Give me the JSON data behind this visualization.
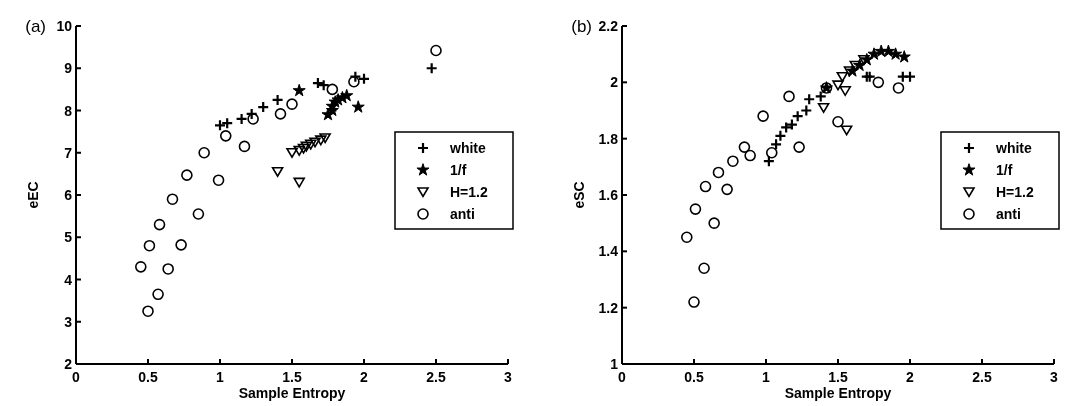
{
  "chart_data": [
    {
      "type": "scatter",
      "title": "(a)",
      "xlabel": "Sample Entropy",
      "ylabel": "eEC",
      "xlim": [
        0,
        3
      ],
      "xticks": [
        0,
        0.5,
        1,
        1.5,
        2,
        2.5,
        3
      ],
      "ylim": [
        2,
        10
      ],
      "yticks": [
        2,
        3,
        4,
        5,
        6,
        7,
        8,
        9,
        10
      ],
      "legend": "right",
      "grid": false,
      "series": [
        {
          "name": "white",
          "color": "#000000",
          "marker": "cross",
          "x": [
            1.0,
            1.05,
            1.15,
            1.22,
            1.3,
            1.4,
            1.68,
            1.72,
            1.94,
            2.0,
            2.47
          ],
          "values": [
            7.65,
            7.7,
            7.8,
            7.92,
            8.08,
            8.25,
            8.65,
            8.6,
            8.8,
            8.75,
            9.0
          ]
        },
        {
          "name": "1/f",
          "color": "#000000",
          "marker": "star",
          "x": [
            1.55,
            1.75,
            1.78,
            1.78,
            1.8,
            1.82,
            1.85,
            1.88,
            1.96
          ],
          "values": [
            8.47,
            7.9,
            8.0,
            8.1,
            8.2,
            8.25,
            8.3,
            8.35,
            8.08
          ]
        },
        {
          "name": "H=1.2",
          "color": "#000000",
          "marker": "triangle",
          "x": [
            1.4,
            1.55,
            1.5,
            1.55,
            1.58,
            1.6,
            1.63,
            1.66,
            1.7,
            1.73
          ],
          "values": [
            6.55,
            6.3,
            7.0,
            7.05,
            7.1,
            7.15,
            7.2,
            7.25,
            7.3,
            7.35
          ]
        },
        {
          "name": "anti",
          "color": "#000000",
          "marker": "circle",
          "x": [
            0.5,
            0.57,
            0.45,
            0.64,
            0.51,
            0.73,
            0.58,
            0.85,
            0.67,
            0.99,
            0.77,
            0.89,
            1.17,
            1.04,
            1.23,
            1.42,
            1.5,
            1.78,
            1.93,
            2.5
          ],
          "values": [
            3.25,
            3.65,
            4.3,
            4.25,
            4.8,
            4.82,
            5.3,
            5.55,
            5.9,
            6.35,
            6.47,
            7.0,
            7.15,
            7.4,
            7.8,
            7.92,
            8.15,
            8.5,
            8.68,
            9.42
          ]
        }
      ]
    },
    {
      "type": "scatter",
      "title": "(b)",
      "xlabel": "Sample Entropy",
      "ylabel": "eSC",
      "xlim": [
        0,
        3
      ],
      "xticks": [
        0,
        0.5,
        1,
        1.5,
        2,
        2.5,
        3
      ],
      "ylim": [
        1,
        2.2
      ],
      "yticks": [
        1,
        1.2,
        1.4,
        1.6,
        1.8,
        2,
        2.2
      ],
      "legend": "right",
      "grid": false,
      "series": [
        {
          "name": "white",
          "color": "#000000",
          "marker": "cross",
          "x": [
            1.02,
            1.07,
            1.1,
            1.14,
            1.18,
            1.22,
            1.28,
            1.3,
            1.38,
            1.7,
            1.72,
            1.95,
            2.0
          ],
          "values": [
            1.72,
            1.78,
            1.81,
            1.84,
            1.85,
            1.88,
            1.9,
            1.94,
            1.95,
            2.02,
            2.02,
            2.02,
            2.02
          ]
        },
        {
          "name": "1/f",
          "color": "#000000",
          "marker": "star",
          "x": [
            1.42,
            1.6,
            1.65,
            1.7,
            1.75,
            1.8,
            1.85,
            1.9,
            1.96
          ],
          "values": [
            1.98,
            2.04,
            2.06,
            2.08,
            2.1,
            2.11,
            2.11,
            2.1,
            2.09
          ]
        },
        {
          "name": "H=1.2",
          "color": "#000000",
          "marker": "triangle",
          "x": [
            1.4,
            1.5,
            1.55,
            1.56,
            1.53,
            1.58,
            1.62,
            1.68
          ],
          "values": [
            1.91,
            1.99,
            1.97,
            1.83,
            2.02,
            2.04,
            2.06,
            2.08
          ]
        },
        {
          "name": "anti",
          "color": "#000000",
          "marker": "circle",
          "x": [
            0.45,
            0.5,
            0.51,
            0.57,
            0.58,
            0.64,
            0.67,
            0.73,
            0.77,
            0.85,
            0.89,
            0.98,
            1.04,
            1.16,
            1.23,
            1.42,
            1.5,
            1.78,
            1.92
          ],
          "values": [
            1.45,
            1.22,
            1.55,
            1.34,
            1.63,
            1.5,
            1.68,
            1.62,
            1.72,
            1.77,
            1.74,
            1.88,
            1.75,
            1.95,
            1.77,
            1.98,
            1.86,
            2.0,
            1.98
          ]
        }
      ]
    }
  ]
}
